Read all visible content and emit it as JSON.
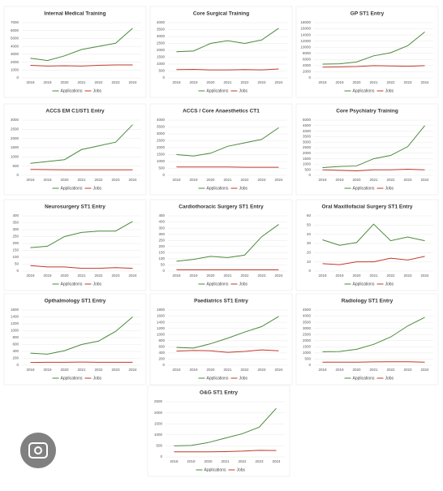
{
  "chart_data": [
    {
      "type": "line",
      "title": "Internal Medical Training",
      "categories": [
        "2018",
        "2019",
        "2020",
        "2021",
        "2022",
        "2023",
        "2024"
      ],
      "ylim": [
        0,
        7000
      ],
      "yticks": [
        0,
        1000,
        2000,
        3000,
        4000,
        5000,
        6000,
        7000
      ],
      "grid": true,
      "series": [
        {
          "name": "Applications",
          "color": "#4a8a3a",
          "values": [
            2500,
            2200,
            2800,
            3600,
            4000,
            4400,
            6300
          ]
        },
        {
          "name": "Jobs",
          "color": "#c0392b",
          "values": [
            1600,
            1500,
            1550,
            1500,
            1600,
            1650,
            1650
          ]
        }
      ]
    },
    {
      "type": "line",
      "title": "Core Surgical Training",
      "categories": [
        "2018",
        "2019",
        "2020",
        "2021",
        "2022",
        "2023",
        "2024"
      ],
      "ylim": [
        0,
        4000
      ],
      "yticks": [
        0,
        500,
        1000,
        1500,
        2000,
        2500,
        3000,
        3500,
        4000
      ],
      "grid": true,
      "series": [
        {
          "name": "Applications",
          "color": "#4a8a3a",
          "values": [
            1900,
            1950,
            2500,
            2700,
            2500,
            2750,
            3600
          ]
        },
        {
          "name": "Jobs",
          "color": "#c0392b",
          "values": [
            600,
            620,
            580,
            580,
            600,
            580,
            650
          ]
        }
      ]
    },
    {
      "type": "line",
      "title": "GP ST1 Entry",
      "categories": [
        "2018",
        "2019",
        "2020",
        "2021",
        "2022",
        "2023",
        "2024"
      ],
      "ylim": [
        0,
        18000
      ],
      "yticks": [
        0,
        2000,
        4000,
        6000,
        8000,
        10000,
        12000,
        14000,
        16000,
        18000
      ],
      "grid": true,
      "series": [
        {
          "name": "Applications",
          "color": "#4a8a3a",
          "values": [
            4500,
            4600,
            5200,
            7200,
            8200,
            10500,
            15000
          ]
        },
        {
          "name": "Jobs",
          "color": "#c0392b",
          "values": [
            3500,
            3600,
            3700,
            4000,
            3900,
            3800,
            4000
          ]
        }
      ]
    },
    {
      "type": "line",
      "title": "ACCS EM C1/ST1 Entry",
      "categories": [
        "2018",
        "2019",
        "2020",
        "2021",
        "2022",
        "2023",
        "2024"
      ],
      "ylim": [
        0,
        3000
      ],
      "yticks": [
        0,
        500,
        1000,
        1500,
        2000,
        2500,
        3000
      ],
      "grid": true,
      "series": [
        {
          "name": "Applications",
          "color": "#4a8a3a",
          "values": [
            650,
            750,
            850,
            1400,
            1600,
            1800,
            2750
          ]
        },
        {
          "name": "Jobs",
          "color": "#c0392b",
          "values": [
            320,
            310,
            300,
            300,
            300,
            300,
            300
          ]
        }
      ]
    },
    {
      "type": "line",
      "title": "ACCS / Core Anaesthetics CT1",
      "categories": [
        "2018",
        "2019",
        "2020",
        "2021",
        "2022",
        "2023",
        "2024"
      ],
      "ylim": [
        0,
        4000
      ],
      "yticks": [
        0,
        500,
        1000,
        1500,
        2000,
        2500,
        3000,
        3500,
        4000
      ],
      "grid": true,
      "series": [
        {
          "name": "Applications",
          "color": "#4a8a3a",
          "values": [
            1500,
            1400,
            1600,
            2100,
            2350,
            2600,
            3450
          ]
        },
        {
          "name": "Jobs",
          "color": "#c0392b",
          "values": [
            600,
            600,
            600,
            600,
            580,
            580,
            580
          ]
        }
      ]
    },
    {
      "type": "line",
      "title": "Core Psychiatry Training",
      "categories": [
        "2018",
        "2019",
        "2020",
        "2021",
        "2022",
        "2023",
        "2024"
      ],
      "ylim": [
        0,
        5000
      ],
      "yticks": [
        0,
        500,
        1000,
        1500,
        2000,
        2500,
        3000,
        3500,
        4000,
        4500,
        5000
      ],
      "grid": true,
      "series": [
        {
          "name": "Applications",
          "color": "#4a8a3a",
          "values": [
            700,
            800,
            850,
            1500,
            1800,
            2600,
            4500
          ]
        },
        {
          "name": "Jobs",
          "color": "#c0392b",
          "values": [
            500,
            450,
            400,
            500,
            500,
            550,
            500
          ]
        }
      ]
    },
    {
      "type": "line",
      "title": "Neurosurgery ST1 Entry",
      "categories": [
        "2018",
        "2019",
        "2020",
        "2021",
        "2022",
        "2023",
        "2024"
      ],
      "ylim": [
        0,
        400
      ],
      "yticks": [
        0,
        50,
        100,
        150,
        200,
        250,
        300,
        350,
        400
      ],
      "grid": true,
      "series": [
        {
          "name": "Applications",
          "color": "#4a8a3a",
          "values": [
            170,
            180,
            250,
            280,
            290,
            290,
            360
          ]
        },
        {
          "name": "Jobs",
          "color": "#c0392b",
          "values": [
            40,
            30,
            30,
            20,
            20,
            25,
            20
          ]
        }
      ]
    },
    {
      "type": "line",
      "title": "Cardiothoracic Surgery ST1 Entry",
      "categories": [
        "2018",
        "2019",
        "2020",
        "2021",
        "2022",
        "2023",
        "2024"
      ],
      "ylim": [
        0,
        450
      ],
      "yticks": [
        0,
        50,
        100,
        150,
        200,
        250,
        300,
        350,
        400,
        450
      ],
      "grid": true,
      "series": [
        {
          "name": "Applications",
          "color": "#4a8a3a",
          "values": [
            80,
            95,
            120,
            110,
            130,
            280,
            380
          ]
        },
        {
          "name": "Jobs",
          "color": "#c0392b",
          "values": [
            10,
            10,
            10,
            10,
            10,
            10,
            10
          ]
        }
      ]
    },
    {
      "type": "line",
      "title": "Oral Maxillofacial Surgery ST1 Entry",
      "categories": [
        "2018",
        "2019",
        "2020",
        "2021",
        "2022",
        "2023",
        "2024"
      ],
      "ylim": [
        0,
        60
      ],
      "yticks": [
        0,
        10,
        20,
        30,
        40,
        50,
        60
      ],
      "grid": true,
      "series": [
        {
          "name": "Applications",
          "color": "#4a8a3a",
          "values": [
            34,
            28,
            31,
            51,
            33,
            37,
            33
          ]
        },
        {
          "name": "Jobs",
          "color": "#c0392b",
          "values": [
            8,
            7,
            10,
            10,
            14,
            12,
            16
          ]
        }
      ]
    },
    {
      "type": "line",
      "title": "Opthalmology ST1 Entry",
      "categories": [
        "2018",
        "2019",
        "2020",
        "2021",
        "2022",
        "2023",
        "2024"
      ],
      "ylim": [
        0,
        1600
      ],
      "yticks": [
        0,
        200,
        400,
        600,
        800,
        1000,
        1200,
        1400,
        1600
      ],
      "grid": true,
      "series": [
        {
          "name": "Applications",
          "color": "#4a8a3a",
          "values": [
            350,
            320,
            420,
            600,
            700,
            980,
            1400
          ]
        },
        {
          "name": "Jobs",
          "color": "#c0392b",
          "values": [
            80,
            85,
            85,
            90,
            85,
            85,
            85
          ]
        }
      ]
    },
    {
      "type": "line",
      "title": "Paediatrics ST1 Entry",
      "categories": [
        "2018",
        "2019",
        "2020",
        "2021",
        "2022",
        "2023",
        "2024"
      ],
      "ylim": [
        0,
        1800
      ],
      "yticks": [
        0,
        200,
        400,
        600,
        800,
        1000,
        1200,
        1400,
        1600,
        1800
      ],
      "grid": true,
      "series": [
        {
          "name": "Applications",
          "color": "#4a8a3a",
          "values": [
            580,
            560,
            700,
            880,
            1080,
            1260,
            1590
          ]
        },
        {
          "name": "Jobs",
          "color": "#c0392b",
          "values": [
            460,
            480,
            470,
            420,
            450,
            500,
            470
          ]
        }
      ]
    },
    {
      "type": "line",
      "title": "Radiology ST1 Entry",
      "categories": [
        "2018",
        "2019",
        "2020",
        "2021",
        "2022",
        "2023",
        "2024"
      ],
      "ylim": [
        0,
        4500
      ],
      "yticks": [
        0,
        500,
        1000,
        1500,
        2000,
        2500,
        3000,
        3500,
        4000,
        4500
      ],
      "grid": true,
      "series": [
        {
          "name": "Applications",
          "color": "#4a8a3a",
          "values": [
            1100,
            1120,
            1300,
            1700,
            2300,
            3200,
            3900
          ]
        },
        {
          "name": "Jobs",
          "color": "#c0392b",
          "values": [
            250,
            250,
            250,
            270,
            280,
            280,
            250
          ]
        }
      ]
    },
    {
      "type": "line",
      "title": "O&G ST1 Entry",
      "categories": [
        "2018",
        "2019",
        "2020",
        "2021",
        "2022",
        "2023",
        "2024"
      ],
      "ylim": [
        0,
        2500
      ],
      "yticks": [
        0,
        500,
        1000,
        1500,
        2000,
        2500
      ],
      "grid": true,
      "series": [
        {
          "name": "Applications",
          "color": "#4a8a3a",
          "values": [
            500,
            520,
            650,
            850,
            1050,
            1350,
            2200
          ]
        },
        {
          "name": "Jobs",
          "color": "#c0392b",
          "values": [
            230,
            230,
            230,
            240,
            260,
            300,
            290
          ]
        }
      ]
    }
  ]
}
